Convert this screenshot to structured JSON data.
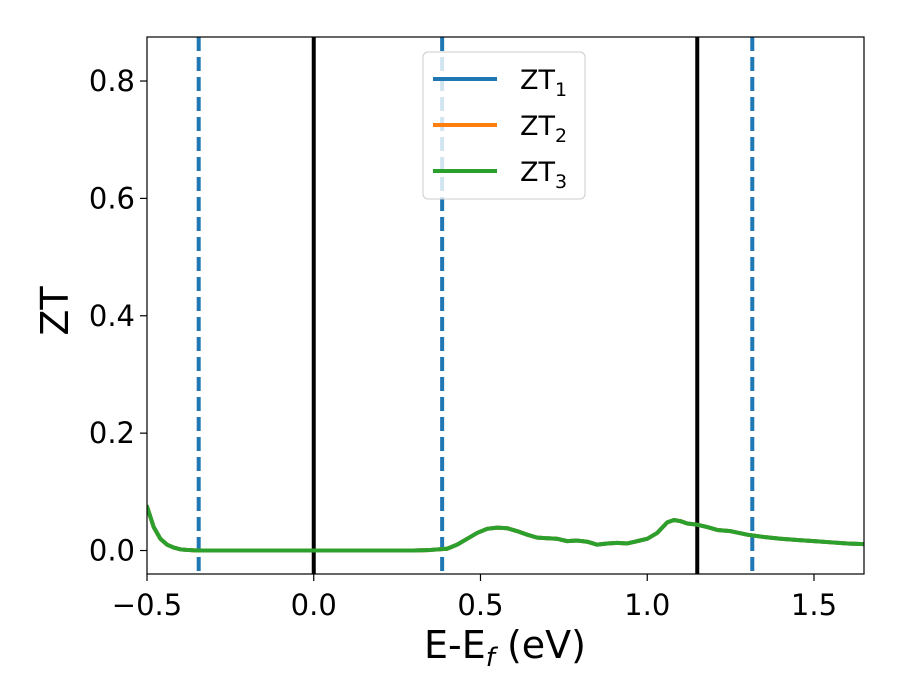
{
  "chart_data": {
    "type": "line",
    "xlabel": "E-E",
    "xlabel_sub": "f",
    "xlabel_unit": " (eV)",
    "ylabel": "ZT",
    "xlim": [
      -0.5,
      1.65
    ],
    "ylim": [
      -0.04,
      0.875
    ],
    "xticks": [
      -0.5,
      0.0,
      0.5,
      1.0,
      1.5
    ],
    "xtick_labels": [
      "−0.5",
      "0.0",
      "0.5",
      "1.0",
      "1.5"
    ],
    "yticks": [
      0.0,
      0.2,
      0.4,
      0.6,
      0.8
    ],
    "ytick_labels": [
      "0.0",
      "0.2",
      "0.4",
      "0.6",
      "0.8"
    ],
    "grid": false,
    "legend_position": "top-center",
    "vlines": [
      {
        "x": -0.345,
        "style": "dashed",
        "color": "#1f77b4"
      },
      {
        "x": 0.0,
        "style": "solid",
        "color": "#000000"
      },
      {
        "x": 0.385,
        "style": "dashed",
        "color": "#1f77b4"
      },
      {
        "x": 1.15,
        "style": "solid",
        "color": "#000000"
      },
      {
        "x": 1.315,
        "style": "dashed",
        "color": "#1f77b4"
      }
    ],
    "series": [
      {
        "name": "ZT",
        "sub": "1",
        "color": "#1f77b4",
        "x": [
          -0.5,
          -0.48,
          -0.46,
          -0.44,
          -0.42,
          -0.4,
          -0.38,
          -0.35,
          -0.3,
          -0.2,
          -0.1,
          0.0,
          0.1,
          0.2,
          0.3,
          0.35,
          0.4,
          0.43,
          0.46,
          0.49,
          0.52,
          0.55,
          0.58,
          0.61,
          0.64,
          0.67,
          0.7,
          0.73,
          0.76,
          0.79,
          0.82,
          0.85,
          0.88,
          0.91,
          0.94,
          0.97,
          1.0,
          1.03,
          1.06,
          1.08,
          1.1,
          1.12,
          1.15,
          1.18,
          1.21,
          1.25,
          1.3,
          1.35,
          1.4,
          1.45,
          1.5,
          1.55,
          1.6,
          1.65
        ],
        "y": [
          0.075,
          0.04,
          0.02,
          0.01,
          0.005,
          0.002,
          0.001,
          0.0,
          0.0,
          0.0,
          0.0,
          0.0,
          0.0,
          0.0,
          0.0,
          0.001,
          0.003,
          0.01,
          0.02,
          0.03,
          0.037,
          0.039,
          0.038,
          0.033,
          0.027,
          0.022,
          0.021,
          0.02,
          0.016,
          0.017,
          0.015,
          0.01,
          0.012,
          0.013,
          0.012,
          0.016,
          0.02,
          0.03,
          0.048,
          0.052,
          0.05,
          0.046,
          0.044,
          0.04,
          0.035,
          0.033,
          0.027,
          0.023,
          0.02,
          0.018,
          0.016,
          0.014,
          0.012,
          0.011
        ]
      },
      {
        "name": "ZT",
        "sub": "2",
        "color": "#ff7f0e",
        "x": [
          -0.5,
          -0.48,
          -0.46,
          -0.44,
          -0.42,
          -0.4,
          -0.38,
          -0.35,
          -0.3,
          -0.2,
          -0.1,
          0.0,
          0.1,
          0.2,
          0.3,
          0.35,
          0.4,
          0.43,
          0.46,
          0.49,
          0.52,
          0.55,
          0.58,
          0.61,
          0.64,
          0.67,
          0.7,
          0.73,
          0.76,
          0.79,
          0.82,
          0.85,
          0.88,
          0.91,
          0.94,
          0.97,
          1.0,
          1.03,
          1.06,
          1.08,
          1.1,
          1.12,
          1.15,
          1.18,
          1.21,
          1.25,
          1.3,
          1.35,
          1.4,
          1.45,
          1.5,
          1.55,
          1.6,
          1.65
        ],
        "y": [
          0.075,
          0.04,
          0.02,
          0.01,
          0.005,
          0.002,
          0.001,
          0.0,
          0.0,
          0.0,
          0.0,
          0.0,
          0.0,
          0.0,
          0.0,
          0.001,
          0.003,
          0.01,
          0.02,
          0.03,
          0.037,
          0.039,
          0.038,
          0.033,
          0.027,
          0.022,
          0.021,
          0.02,
          0.016,
          0.017,
          0.015,
          0.01,
          0.012,
          0.013,
          0.012,
          0.016,
          0.02,
          0.03,
          0.048,
          0.052,
          0.05,
          0.046,
          0.044,
          0.04,
          0.035,
          0.033,
          0.027,
          0.023,
          0.02,
          0.018,
          0.016,
          0.014,
          0.012,
          0.011
        ]
      },
      {
        "name": "ZT",
        "sub": "3",
        "color": "#2ca02c",
        "x": [
          -0.5,
          -0.48,
          -0.46,
          -0.44,
          -0.42,
          -0.4,
          -0.38,
          -0.35,
          -0.3,
          -0.2,
          -0.1,
          0.0,
          0.1,
          0.2,
          0.3,
          0.35,
          0.4,
          0.43,
          0.46,
          0.49,
          0.52,
          0.55,
          0.58,
          0.61,
          0.64,
          0.67,
          0.7,
          0.73,
          0.76,
          0.79,
          0.82,
          0.85,
          0.88,
          0.91,
          0.94,
          0.97,
          1.0,
          1.03,
          1.06,
          1.08,
          1.1,
          1.12,
          1.15,
          1.18,
          1.21,
          1.25,
          1.3,
          1.35,
          1.4,
          1.45,
          1.5,
          1.55,
          1.6,
          1.65
        ],
        "y": [
          0.075,
          0.04,
          0.02,
          0.01,
          0.005,
          0.002,
          0.001,
          0.0,
          0.0,
          0.0,
          0.0,
          0.0,
          0.0,
          0.0,
          0.0,
          0.001,
          0.003,
          0.01,
          0.02,
          0.03,
          0.037,
          0.039,
          0.038,
          0.033,
          0.027,
          0.022,
          0.021,
          0.02,
          0.016,
          0.017,
          0.015,
          0.01,
          0.012,
          0.013,
          0.012,
          0.016,
          0.02,
          0.03,
          0.048,
          0.052,
          0.05,
          0.046,
          0.044,
          0.04,
          0.035,
          0.033,
          0.027,
          0.023,
          0.02,
          0.018,
          0.016,
          0.014,
          0.012,
          0.011
        ]
      }
    ]
  }
}
